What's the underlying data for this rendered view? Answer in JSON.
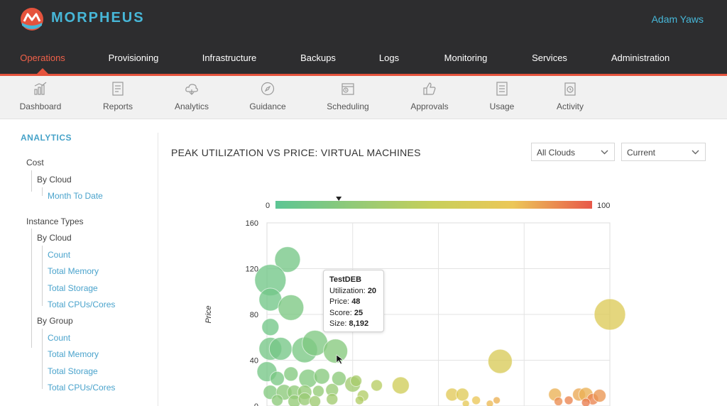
{
  "app": {
    "brand": "MORPHEUS",
    "user": "Adam Yaws"
  },
  "main_nav": [
    {
      "label": "Operations",
      "active": true
    },
    {
      "label": "Provisioning"
    },
    {
      "label": "Infrastructure"
    },
    {
      "label": "Backups"
    },
    {
      "label": "Logs"
    },
    {
      "label": "Monitoring"
    },
    {
      "label": "Services"
    },
    {
      "label": "Administration"
    }
  ],
  "sub_nav": [
    {
      "label": "Dashboard",
      "icon": "dashboard-icon"
    },
    {
      "label": "Reports",
      "icon": "reports-icon"
    },
    {
      "label": "Analytics",
      "icon": "analytics-icon"
    },
    {
      "label": "Guidance",
      "icon": "guidance-icon"
    },
    {
      "label": "Scheduling",
      "icon": "scheduling-icon"
    },
    {
      "label": "Approvals",
      "icon": "approvals-icon"
    },
    {
      "label": "Usage",
      "icon": "usage-icon"
    },
    {
      "label": "Activity",
      "icon": "activity-icon"
    }
  ],
  "sidebar": {
    "title": "ANALYTICS",
    "cost": "Cost",
    "cost_by_cloud": "By Cloud",
    "month_to_date": "Month To Date",
    "instance_types": "Instance Types",
    "it_by_cloud": "By Cloud",
    "cloud_items": [
      "Count",
      "Total Memory",
      "Total Storage",
      "Total CPUs/Cores"
    ],
    "it_by_group": "By Group",
    "group_items": [
      "Count",
      "Total Memory",
      "Total Storage",
      "Total CPUs/Cores"
    ]
  },
  "chart_heading": "PEAK UTILIZATION VS PRICE: VIRTUAL MACHINES",
  "filters": {
    "cloud": "All Clouds",
    "period": "Current"
  },
  "colors": {
    "accent": "#e5533d",
    "brand": "#47b7d8",
    "scale_low": "#5cc594",
    "scale_mid": "#e8cf5a",
    "scale_high": "#e8584a"
  },
  "tooltip": {
    "title": "TestDEB",
    "util_label": "Utilization:",
    "util_value": "20",
    "price_label": "Price:",
    "price_value": "48",
    "score_label": "Score:",
    "score_value": "25",
    "size_label": "Size:",
    "size_value": "8,192"
  },
  "chart_data": {
    "type": "scatter",
    "title": "",
    "xlabel": "",
    "ylabel": "Price",
    "ylim": [
      0,
      160
    ],
    "xlim": [
      0,
      100
    ],
    "y_ticks": [
      "0",
      "40",
      "80",
      "120",
      "160"
    ],
    "grid": true,
    "color_scale": {
      "min_label": "0",
      "max_label": "100",
      "marker_value": 20
    },
    "points": [
      {
        "x": 6,
        "y": 128,
        "r": 18,
        "c": 0.12
      },
      {
        "x": 1,
        "y": 110,
        "r": 22,
        "c": 0.1
      },
      {
        "x": 1,
        "y": 93,
        "r": 16,
        "c": 0.1
      },
      {
        "x": 7,
        "y": 86,
        "r": 18,
        "c": 0.15
      },
      {
        "x": 1,
        "y": 69,
        "r": 12,
        "c": 0.1
      },
      {
        "x": 1,
        "y": 50,
        "r": 16,
        "c": 0.12
      },
      {
        "x": 4,
        "y": 50,
        "r": 16,
        "c": 0.12
      },
      {
        "x": 11,
        "y": 49,
        "r": 18,
        "c": 0.14
      },
      {
        "x": 14,
        "y": 55,
        "r": 18,
        "c": 0.16
      },
      {
        "x": 20,
        "y": 48,
        "r": 17,
        "c": 0.2
      },
      {
        "x": 0,
        "y": 30,
        "r": 14,
        "c": 0.12
      },
      {
        "x": 3,
        "y": 24,
        "r": 10,
        "c": 0.14
      },
      {
        "x": 7,
        "y": 28,
        "r": 10,
        "c": 0.18
      },
      {
        "x": 12,
        "y": 24,
        "r": 13,
        "c": 0.18
      },
      {
        "x": 16,
        "y": 26,
        "r": 11,
        "c": 0.2
      },
      {
        "x": 21,
        "y": 24,
        "r": 10,
        "c": 0.22
      },
      {
        "x": 1,
        "y": 12,
        "r": 10,
        "c": 0.18
      },
      {
        "x": 5,
        "y": 12,
        "r": 11,
        "c": 0.22
      },
      {
        "x": 8,
        "y": 12,
        "r": 10,
        "c": 0.24
      },
      {
        "x": 11,
        "y": 12,
        "r": 10,
        "c": 0.26
      },
      {
        "x": 15,
        "y": 13,
        "r": 8,
        "c": 0.26
      },
      {
        "x": 19,
        "y": 14,
        "r": 9,
        "c": 0.28
      },
      {
        "x": 25,
        "y": 19,
        "r": 11,
        "c": 0.32
      },
      {
        "x": 3,
        "y": 5,
        "r": 8,
        "c": 0.22
      },
      {
        "x": 8,
        "y": 4,
        "r": 9,
        "c": 0.26
      },
      {
        "x": 11,
        "y": 6,
        "r": 9,
        "c": 0.28
      },
      {
        "x": 14,
        "y": 4,
        "r": 8,
        "c": 0.3
      },
      {
        "x": 19,
        "y": 6,
        "r": 8,
        "c": 0.32
      },
      {
        "x": 26,
        "y": 22,
        "r": 8,
        "c": 0.35
      },
      {
        "x": 28,
        "y": 9,
        "r": 8,
        "c": 0.4
      },
      {
        "x": 32,
        "y": 18,
        "r": 8,
        "c": 0.42
      },
      {
        "x": 39,
        "y": 18,
        "r": 12,
        "c": 0.55
      },
      {
        "x": 27,
        "y": 5,
        "r": 6,
        "c": 0.4
      },
      {
        "x": 54,
        "y": 10,
        "r": 9,
        "c": 0.68
      },
      {
        "x": 57,
        "y": 10,
        "r": 9,
        "c": 0.66
      },
      {
        "x": 58,
        "y": 2,
        "r": 5,
        "c": 0.7
      },
      {
        "x": 61,
        "y": 5,
        "r": 6,
        "c": 0.74
      },
      {
        "x": 65,
        "y": 2,
        "r": 5,
        "c": 0.78
      },
      {
        "x": 67,
        "y": 5,
        "r": 5,
        "c": 0.8
      },
      {
        "x": 68,
        "y": 39,
        "r": 17,
        "c": 0.62
      },
      {
        "x": 84,
        "y": 10,
        "r": 9,
        "c": 0.8
      },
      {
        "x": 85,
        "y": 4,
        "r": 6,
        "c": 0.88
      },
      {
        "x": 88,
        "y": 5,
        "r": 6,
        "c": 0.9
      },
      {
        "x": 91,
        "y": 10,
        "r": 9,
        "c": 0.82
      },
      {
        "x": 93,
        "y": 10,
        "r": 10,
        "c": 0.8
      },
      {
        "x": 95,
        "y": 6,
        "r": 8,
        "c": 0.9
      },
      {
        "x": 97,
        "y": 9,
        "r": 9,
        "c": 0.86
      },
      {
        "x": 93,
        "y": 3,
        "r": 6,
        "c": 0.92
      },
      {
        "x": 100,
        "y": 80,
        "r": 22,
        "c": 0.64
      }
    ]
  }
}
